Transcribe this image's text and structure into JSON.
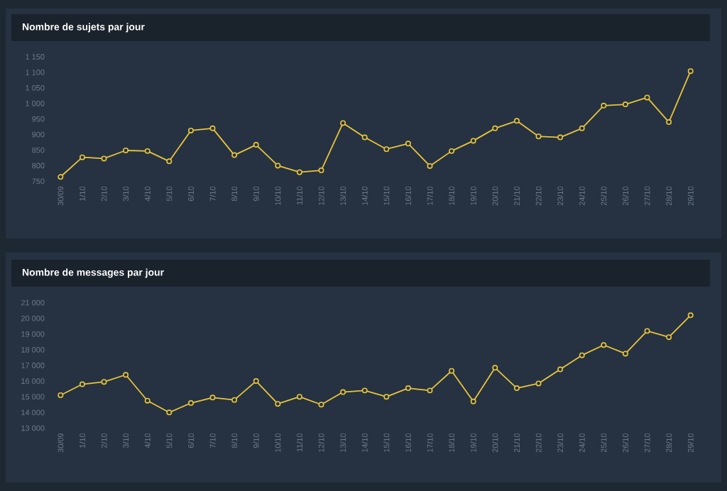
{
  "chart_data": [
    {
      "type": "line",
      "title": "Nombre de sujets par jour",
      "categories": [
        "30/09",
        "1/10",
        "2/10",
        "3/10",
        "4/10",
        "5/10",
        "6/10",
        "7/10",
        "8/10",
        "9/10",
        "10/10",
        "11/10",
        "12/10",
        "13/10",
        "14/10",
        "15/10",
        "16/10",
        "17/10",
        "18/10",
        "19/10",
        "20/10",
        "21/10",
        "22/10",
        "23/10",
        "24/10",
        "25/10",
        "26/10",
        "27/10",
        "28/10",
        "29/10"
      ],
      "values": [
        764,
        827,
        823,
        849,
        847,
        814,
        913,
        920,
        834,
        867,
        800,
        779,
        785,
        937,
        891,
        853,
        871,
        799,
        847,
        880,
        920,
        944,
        894,
        891,
        920,
        993,
        997,
        1019,
        940,
        1104
      ],
      "color": "#e8c53a",
      "marker": "circle",
      "ylim": [
        750,
        1150
      ],
      "yticks": [
        750,
        800,
        850,
        900,
        950,
        {
          "value": 1000,
          "label": "1 000"
        },
        {
          "value": 1050,
          "label": "1 050"
        },
        {
          "value": 1100,
          "label": "1 100"
        },
        {
          "value": 1150,
          "label": "1 150"
        }
      ]
    },
    {
      "type": "line",
      "title": "Nombre de messages par jour",
      "categories": [
        "30/09",
        "1/10",
        "2/10",
        "3/10",
        "4/10",
        "5/10",
        "6/10",
        "7/10",
        "8/10",
        "9/10",
        "10/10",
        "11/10",
        "12/10",
        "13/10",
        "14/10",
        "15/10",
        "16/10",
        "17/10",
        "18/10",
        "19/10",
        "20/10",
        "21/10",
        "22/10",
        "23/10",
        "24/10",
        "25/10",
        "26/10",
        "27/10",
        "28/10",
        "29/10"
      ],
      "values": [
        15100,
        15800,
        15950,
        16400,
        14750,
        14000,
        14600,
        14950,
        14800,
        16000,
        14550,
        15000,
        14500,
        15300,
        15400,
        15000,
        15550,
        15400,
        16650,
        14700,
        16850,
        15550,
        15850,
        16750,
        17650,
        18300,
        17750,
        19200,
        18800,
        20200
      ],
      "color": "#e8c53a",
      "marker": "circle",
      "ylim": [
        13000,
        21000
      ],
      "yticks": [
        {
          "value": 13000,
          "label": "13 000"
        },
        {
          "value": 14000,
          "label": "14 000"
        },
        {
          "value": 15000,
          "label": "15 000"
        },
        {
          "value": 16000,
          "label": "16 000"
        },
        {
          "value": 17000,
          "label": "17 000"
        },
        {
          "value": 18000,
          "label": "18 000"
        },
        {
          "value": 19000,
          "label": "19 000"
        },
        {
          "value": 20000,
          "label": "20 000"
        },
        {
          "value": 21000,
          "label": "21 000"
        }
      ]
    }
  ]
}
